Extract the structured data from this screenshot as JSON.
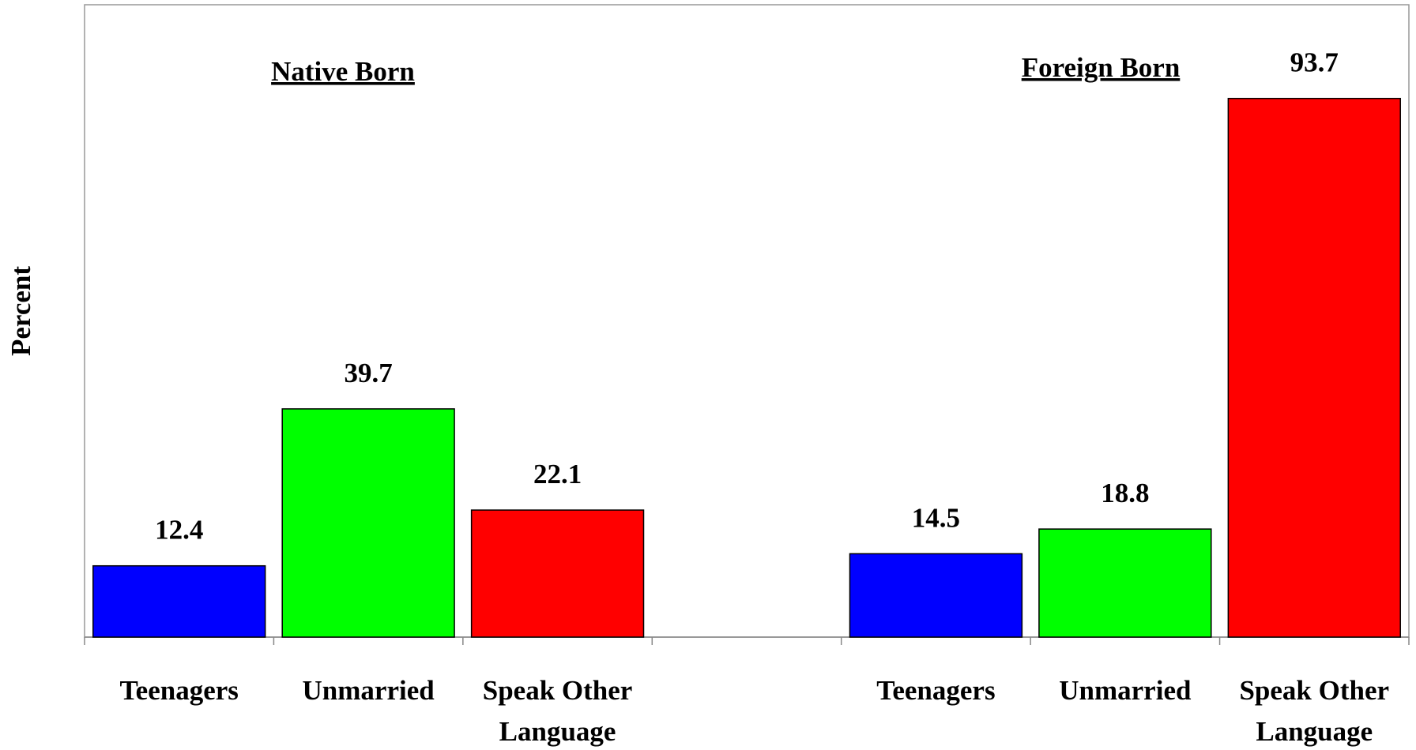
{
  "chart_data": {
    "type": "bar",
    "ylabel": "Percent",
    "annotations": [
      "Native Born",
      "Foreign Born"
    ],
    "categories": [
      "Teenagers",
      "Unmarried",
      "Speak Other Language",
      null,
      "Teenagers",
      "Unmarried",
      "Speak Other Language"
    ],
    "values": [
      12.4,
      39.7,
      22.1,
      null,
      14.5,
      18.8,
      93.7
    ],
    "colors": [
      "#0000ff",
      "#00ff00",
      "#ff0000",
      null,
      "#0000ff",
      "#00ff00",
      "#ff0000"
    ],
    "ylim": [
      0,
      110
    ],
    "grid": false
  }
}
